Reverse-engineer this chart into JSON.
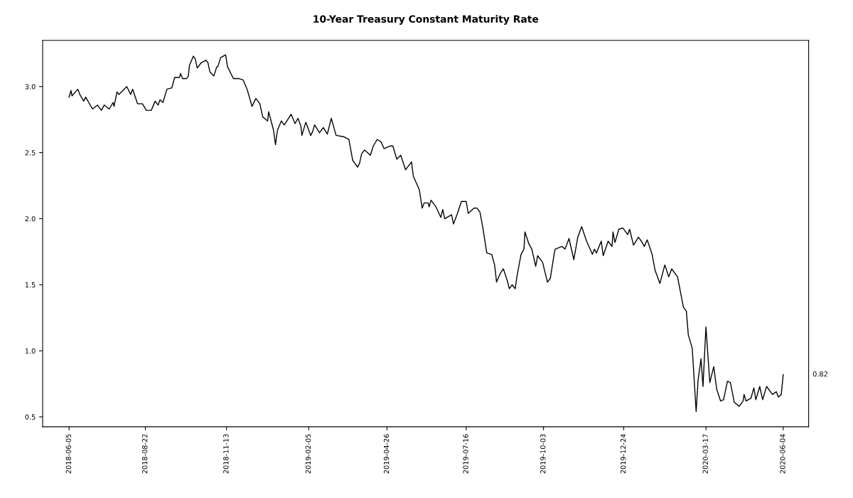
{
  "chart_data": {
    "type": "line",
    "title": "10-Year Treasury Constant Maturity Rate",
    "x": [
      "2018-06-05",
      "2018-06-07",
      "2018-06-08",
      "2018-06-14",
      "2018-06-16",
      "2018-06-20",
      "2018-06-22",
      "2018-06-29",
      "2018-07-04",
      "2018-07-08",
      "2018-07-11",
      "2018-07-16",
      "2018-07-20",
      "2018-07-21",
      "2018-07-24",
      "2018-07-26",
      "2018-08-03",
      "2018-08-07",
      "2018-08-09",
      "2018-08-14",
      "2018-08-19",
      "2018-08-23",
      "2018-08-28",
      "2018-09-01",
      "2018-09-04",
      "2018-09-06",
      "2018-09-09",
      "2018-09-13",
      "2018-09-18",
      "2018-09-21",
      "2018-09-26",
      "2018-09-27",
      "2018-09-29",
      "2018-10-03",
      "2018-10-05",
      "2018-10-06",
      "2018-10-10",
      "2018-10-12",
      "2018-10-14",
      "2018-10-18",
      "2018-10-23",
      "2018-10-25",
      "2018-10-27",
      "2018-10-31",
      "2018-11-03",
      "2018-11-04",
      "2018-11-07",
      "2018-11-12",
      "2018-11-14",
      "2018-11-20",
      "2018-11-26",
      "2018-11-30",
      "2018-12-04",
      "2018-12-09",
      "2018-12-13",
      "2018-12-17",
      "2018-12-20",
      "2018-12-25",
      "2018-12-26",
      "2018-12-31",
      "2019-01-02",
      "2019-01-04",
      "2019-01-08",
      "2019-01-11",
      "2019-01-18",
      "2019-01-22",
      "2019-01-25",
      "2019-01-28",
      "2019-01-29",
      "2019-02-02",
      "2019-02-07",
      "2019-02-09",
      "2019-02-11",
      "2019-02-16",
      "2019-02-20",
      "2019-02-24",
      "2019-02-28",
      "2019-03-05",
      "2019-03-13",
      "2019-03-18",
      "2019-03-22",
      "2019-03-27",
      "2019-03-29",
      "2019-03-31",
      "2019-04-03",
      "2019-04-09",
      "2019-04-12",
      "2019-04-16",
      "2019-04-20",
      "2019-04-23",
      "2019-04-29",
      "2019-05-02",
      "2019-05-06",
      "2019-05-10",
      "2019-05-15",
      "2019-05-21",
      "2019-05-23",
      "2019-05-26",
      "2019-05-29",
      "2019-06-01",
      "2019-06-03",
      "2019-06-07",
      "2019-06-08",
      "2019-06-10",
      "2019-06-15",
      "2019-06-20",
      "2019-06-22",
      "2019-06-24",
      "2019-07-01",
      "2019-07-03",
      "2019-07-07",
      "2019-07-11",
      "2019-07-16",
      "2019-07-18",
      "2019-07-24",
      "2019-07-27",
      "2019-07-30",
      "2019-08-02",
      "2019-08-06",
      "2019-08-11",
      "2019-08-14",
      "2019-08-16",
      "2019-08-20",
      "2019-08-23",
      "2019-08-27",
      "2019-08-29",
      "2019-09-01",
      "2019-09-04",
      "2019-09-06",
      "2019-09-10",
      "2019-09-13",
      "2019-09-14",
      "2019-09-18",
      "2019-09-21",
      "2019-09-25",
      "2019-09-27",
      "2019-10-02",
      "2019-10-07",
      "2019-10-10",
      "2019-10-14",
      "2019-10-15",
      "2019-10-22",
      "2019-10-25",
      "2019-10-29",
      "2019-11-03",
      "2019-11-07",
      "2019-11-11",
      "2019-11-16",
      "2019-11-22",
      "2019-11-24",
      "2019-11-26",
      "2019-12-01",
      "2019-12-03",
      "2019-12-08",
      "2019-12-12",
      "2019-12-13",
      "2019-12-15",
      "2019-12-19",
      "2019-12-23",
      "2019-12-28",
      "2019-12-30",
      "2020-01-03",
      "2020-01-08",
      "2020-01-11",
      "2020-01-14",
      "2020-01-17",
      "2020-01-22",
      "2020-01-25",
      "2020-01-30",
      "2020-02-04",
      "2020-02-08",
      "2020-02-11",
      "2020-02-17",
      "2020-02-23",
      "2020-02-26",
      "2020-02-28",
      "2020-03-03",
      "2020-03-07",
      "2020-03-09",
      "2020-03-12",
      "2020-03-14",
      "2020-03-17",
      "2020-03-21",
      "2020-03-25",
      "2020-03-28",
      "2020-04-01",
      "2020-04-04",
      "2020-04-08",
      "2020-04-11",
      "2020-04-15",
      "2020-04-20",
      "2020-04-24",
      "2020-04-25",
      "2020-04-27",
      "2020-05-02",
      "2020-05-05",
      "2020-05-07",
      "2020-05-11",
      "2020-05-14",
      "2020-05-18",
      "2020-05-24",
      "2020-05-28",
      "2020-05-30",
      "2020-06-02",
      "2020-06-04"
    ],
    "series": [
      {
        "color": "#000000",
        "values": [
          2.92,
          2.97,
          2.93,
          2.98,
          2.94,
          2.89,
          2.92,
          2.83,
          2.86,
          2.82,
          2.86,
          2.83,
          2.88,
          2.85,
          2.96,
          2.94,
          3.0,
          2.94,
          2.98,
          2.87,
          2.87,
          2.82,
          2.82,
          2.89,
          2.86,
          2.9,
          2.88,
          2.98,
          2.99,
          3.07,
          3.07,
          3.1,
          3.06,
          3.06,
          3.08,
          3.16,
          3.23,
          3.21,
          3.14,
          3.18,
          3.2,
          3.18,
          3.11,
          3.08,
          3.15,
          3.15,
          3.22,
          3.24,
          3.15,
          3.06,
          3.06,
          3.05,
          2.98,
          2.85,
          2.91,
          2.87,
          2.77,
          2.74,
          2.81,
          2.67,
          2.56,
          2.67,
          2.74,
          2.71,
          2.79,
          2.72,
          2.76,
          2.7,
          2.63,
          2.73,
          2.63,
          2.66,
          2.71,
          2.65,
          2.69,
          2.64,
          2.76,
          2.63,
          2.62,
          2.6,
          2.44,
          2.39,
          2.42,
          2.49,
          2.52,
          2.48,
          2.55,
          2.6,
          2.58,
          2.53,
          2.55,
          2.55,
          2.45,
          2.48,
          2.37,
          2.43,
          2.32,
          2.27,
          2.22,
          2.08,
          2.12,
          2.12,
          2.09,
          2.14,
          2.09,
          2.01,
          2.07,
          2.0,
          2.03,
          1.96,
          2.04,
          2.13,
          2.13,
          2.04,
          2.08,
          2.08,
          2.05,
          1.93,
          1.74,
          1.73,
          1.65,
          1.52,
          1.59,
          1.62,
          1.53,
          1.47,
          1.5,
          1.47,
          1.57,
          1.73,
          1.77,
          1.9,
          1.81,
          1.77,
          1.64,
          1.72,
          1.67,
          1.52,
          1.55,
          1.74,
          1.77,
          1.79,
          1.77,
          1.85,
          1.69,
          1.86,
          1.94,
          1.83,
          1.73,
          1.77,
          1.74,
          1.83,
          1.72,
          1.83,
          1.79,
          1.9,
          1.82,
          1.92,
          1.93,
          1.88,
          1.92,
          1.8,
          1.86,
          1.83,
          1.79,
          1.84,
          1.73,
          1.61,
          1.51,
          1.65,
          1.56,
          1.62,
          1.56,
          1.33,
          1.3,
          1.12,
          1.02,
          0.54,
          0.78,
          0.94,
          0.73,
          1.18,
          0.76,
          0.88,
          0.71,
          0.62,
          0.63,
          0.77,
          0.76,
          0.61,
          0.58,
          0.62,
          0.67,
          0.62,
          0.64,
          0.72,
          0.63,
          0.73,
          0.63,
          0.73,
          0.67,
          0.69,
          0.65,
          0.67,
          0.82
        ]
      }
    ],
    "xlim": [
      "2018-05-09",
      "2020-06-30"
    ],
    "xticks": [
      "2018-06-05",
      "2018-08-22",
      "2018-11-13",
      "2019-02-05",
      "2019-04-26",
      "2019-07-16",
      "2019-10-03",
      "2019-12-24",
      "2020-03-17",
      "2020-06-04"
    ],
    "ylim": [
      0.425,
      3.35
    ],
    "yticks": [
      {
        "value": 0.5,
        "label": "0.5"
      },
      {
        "value": 1.0,
        "label": "1.0"
      },
      {
        "value": 1.5,
        "label": "1.5"
      },
      {
        "value": 2.0,
        "label": "2.0"
      },
      {
        "value": 2.5,
        "label": "2.5"
      },
      {
        "value": 3.0,
        "label": "3.0"
      }
    ],
    "annotations": [
      "0.82"
    ],
    "grid": false,
    "marker": "none",
    "line_style": "solid"
  }
}
